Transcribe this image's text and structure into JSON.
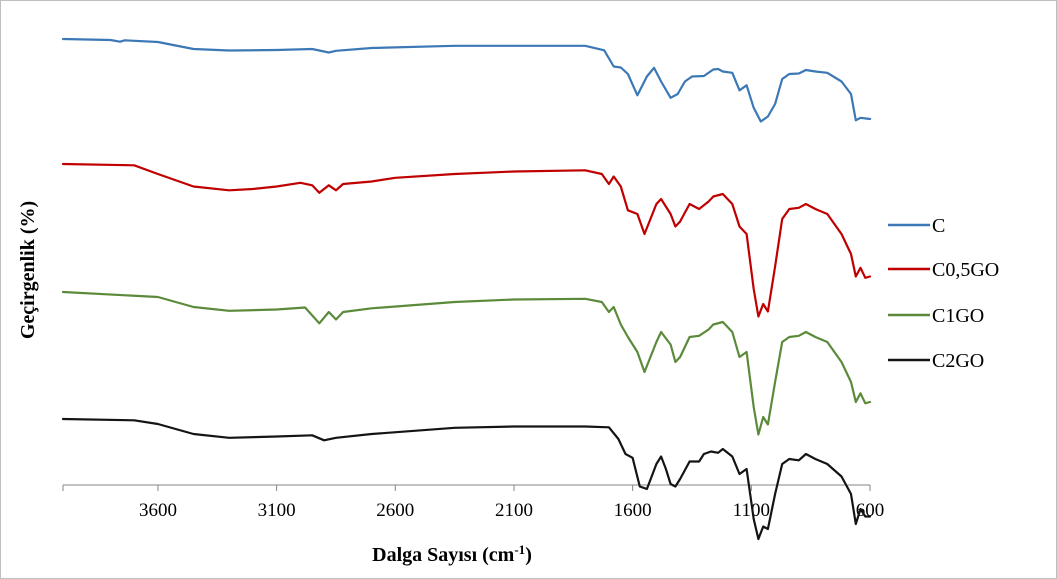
{
  "chart_data": {
    "type": "line",
    "title": "",
    "xlabel_main": "Dalga Sayısı (cm",
    "xlabel_sup": "-1",
    "xlabel_end": ")",
    "ylabel": "Geçirgenlik (%)",
    "xlim": [
      4000,
      600
    ],
    "x_reversed": true,
    "x_ticks": [
      3600,
      3100,
      2600,
      2100,
      1600,
      1100,
      600
    ],
    "y_ticks_shown": false,
    "grid": false,
    "legend_position": "right",
    "series": [
      {
        "name": "C",
        "color": "#3b78b5",
        "points": [
          [
            4000,
            88
          ],
          [
            3800,
            87.6
          ],
          [
            3760,
            86.9
          ],
          [
            3740,
            87.5
          ],
          [
            3600,
            86.8
          ],
          [
            3450,
            84
          ],
          [
            3300,
            83.4
          ],
          [
            3100,
            83.6
          ],
          [
            2950,
            84
          ],
          [
            2880,
            82.6
          ],
          [
            2850,
            83.3
          ],
          [
            2700,
            84.4
          ],
          [
            2350,
            85.3
          ],
          [
            2100,
            85.3
          ],
          [
            1800,
            85.3
          ],
          [
            1720,
            83.5
          ],
          [
            1680,
            77
          ],
          [
            1650,
            76.6
          ],
          [
            1620,
            74
          ],
          [
            1580,
            65.5
          ],
          [
            1540,
            73
          ],
          [
            1510,
            76.5
          ],
          [
            1480,
            71
          ],
          [
            1440,
            64.5
          ],
          [
            1410,
            66
          ],
          [
            1380,
            71
          ],
          [
            1350,
            73
          ],
          [
            1300,
            73.2
          ],
          [
            1260,
            75.8
          ],
          [
            1240,
            76
          ],
          [
            1220,
            75
          ],
          [
            1180,
            74.5
          ],
          [
            1150,
            67.5
          ],
          [
            1120,
            69.5
          ],
          [
            1090,
            60.5
          ],
          [
            1060,
            55
          ],
          [
            1030,
            57
          ],
          [
            1000,
            62
          ],
          [
            970,
            72
          ],
          [
            940,
            74
          ],
          [
            900,
            74.2
          ],
          [
            870,
            75.6
          ],
          [
            830,
            75
          ],
          [
            780,
            74.5
          ],
          [
            720,
            71
          ],
          [
            680,
            66
          ],
          [
            660,
            55.5
          ],
          [
            640,
            56.5
          ],
          [
            600,
            56
          ]
        ]
      },
      {
        "name": "C0,5GO",
        "color": "#c00000",
        "points": [
          [
            4000,
            88
          ],
          [
            3700,
            87.5
          ],
          [
            3600,
            84
          ],
          [
            3450,
            79
          ],
          [
            3300,
            77.5
          ],
          [
            3200,
            78
          ],
          [
            3100,
            79
          ],
          [
            3000,
            80.5
          ],
          [
            2950,
            79.5
          ],
          [
            2920,
            76.5
          ],
          [
            2880,
            79.5
          ],
          [
            2850,
            77.5
          ],
          [
            2820,
            80
          ],
          [
            2700,
            81
          ],
          [
            2600,
            82.5
          ],
          [
            2350,
            84
          ],
          [
            2100,
            85
          ],
          [
            1800,
            85.5
          ],
          [
            1730,
            84
          ],
          [
            1700,
            80
          ],
          [
            1680,
            83
          ],
          [
            1650,
            79
          ],
          [
            1620,
            69.5
          ],
          [
            1580,
            68
          ],
          [
            1550,
            60
          ],
          [
            1500,
            72
          ],
          [
            1480,
            74
          ],
          [
            1440,
            68
          ],
          [
            1420,
            63
          ],
          [
            1400,
            65
          ],
          [
            1360,
            72
          ],
          [
            1320,
            70
          ],
          [
            1280,
            73
          ],
          [
            1260,
            75
          ],
          [
            1220,
            76
          ],
          [
            1180,
            72
          ],
          [
            1150,
            63
          ],
          [
            1120,
            60
          ],
          [
            1090,
            38
          ],
          [
            1070,
            27
          ],
          [
            1050,
            32
          ],
          [
            1030,
            29
          ],
          [
            1000,
            47
          ],
          [
            970,
            66
          ],
          [
            940,
            70
          ],
          [
            900,
            70.5
          ],
          [
            870,
            72
          ],
          [
            830,
            70
          ],
          [
            780,
            68
          ],
          [
            720,
            60
          ],
          [
            680,
            52
          ],
          [
            660,
            43
          ],
          [
            640,
            46.5
          ],
          [
            620,
            42.5
          ],
          [
            600,
            43
          ]
        ]
      },
      {
        "name": "C1GO",
        "color": "#5b8a3a",
        "points": [
          [
            4000,
            88
          ],
          [
            3600,
            86
          ],
          [
            3450,
            82
          ],
          [
            3300,
            80.5
          ],
          [
            3100,
            81
          ],
          [
            2980,
            81.8
          ],
          [
            2920,
            75.5
          ],
          [
            2880,
            80
          ],
          [
            2850,
            77
          ],
          [
            2820,
            80
          ],
          [
            2700,
            81.5
          ],
          [
            2350,
            84
          ],
          [
            2100,
            85
          ],
          [
            1800,
            85.3
          ],
          [
            1730,
            84
          ],
          [
            1700,
            80
          ],
          [
            1680,
            82
          ],
          [
            1650,
            75
          ],
          [
            1620,
            70
          ],
          [
            1580,
            64
          ],
          [
            1550,
            56
          ],
          [
            1500,
            68
          ],
          [
            1480,
            72
          ],
          [
            1440,
            67
          ],
          [
            1420,
            60
          ],
          [
            1400,
            62
          ],
          [
            1360,
            70
          ],
          [
            1320,
            70.5
          ],
          [
            1280,
            73
          ],
          [
            1260,
            75
          ],
          [
            1220,
            76
          ],
          [
            1180,
            72
          ],
          [
            1150,
            62
          ],
          [
            1120,
            64
          ],
          [
            1090,
            42
          ],
          [
            1070,
            31
          ],
          [
            1050,
            38
          ],
          [
            1030,
            35
          ],
          [
            1000,
            52
          ],
          [
            970,
            68
          ],
          [
            940,
            70
          ],
          [
            900,
            70.5
          ],
          [
            870,
            72
          ],
          [
            830,
            70
          ],
          [
            780,
            68
          ],
          [
            720,
            60
          ],
          [
            680,
            52
          ],
          [
            660,
            44
          ],
          [
            640,
            47.5
          ],
          [
            620,
            43.5
          ],
          [
            600,
            44
          ]
        ]
      },
      {
        "name": "C2GO",
        "color": "#141414",
        "points": [
          [
            4000,
            88
          ],
          [
            3700,
            87.5
          ],
          [
            3600,
            86
          ],
          [
            3450,
            82
          ],
          [
            3300,
            80.5
          ],
          [
            3100,
            81
          ],
          [
            2950,
            81.5
          ],
          [
            2900,
            79.5
          ],
          [
            2850,
            80.5
          ],
          [
            2700,
            82
          ],
          [
            2350,
            84.5
          ],
          [
            2100,
            85
          ],
          [
            1800,
            85
          ],
          [
            1700,
            84.7
          ],
          [
            1660,
            80
          ],
          [
            1630,
            74
          ],
          [
            1600,
            72.5
          ],
          [
            1570,
            61
          ],
          [
            1540,
            60
          ],
          [
            1500,
            70
          ],
          [
            1480,
            73
          ],
          [
            1460,
            68
          ],
          [
            1440,
            62
          ],
          [
            1420,
            61
          ],
          [
            1400,
            64
          ],
          [
            1360,
            71
          ],
          [
            1320,
            71
          ],
          [
            1300,
            74
          ],
          [
            1270,
            75
          ],
          [
            1240,
            74.5
          ],
          [
            1220,
            76
          ],
          [
            1180,
            73
          ],
          [
            1150,
            66
          ],
          [
            1120,
            68
          ],
          [
            1090,
            48
          ],
          [
            1070,
            40
          ],
          [
            1050,
            45
          ],
          [
            1030,
            44
          ],
          [
            1000,
            58
          ],
          [
            970,
            70
          ],
          [
            940,
            72
          ],
          [
            900,
            71.5
          ],
          [
            870,
            74
          ],
          [
            830,
            72
          ],
          [
            780,
            70
          ],
          [
            720,
            65
          ],
          [
            680,
            58
          ],
          [
            660,
            46
          ],
          [
            640,
            52
          ],
          [
            620,
            49
          ],
          [
            600,
            49
          ]
        ]
      }
    ]
  }
}
